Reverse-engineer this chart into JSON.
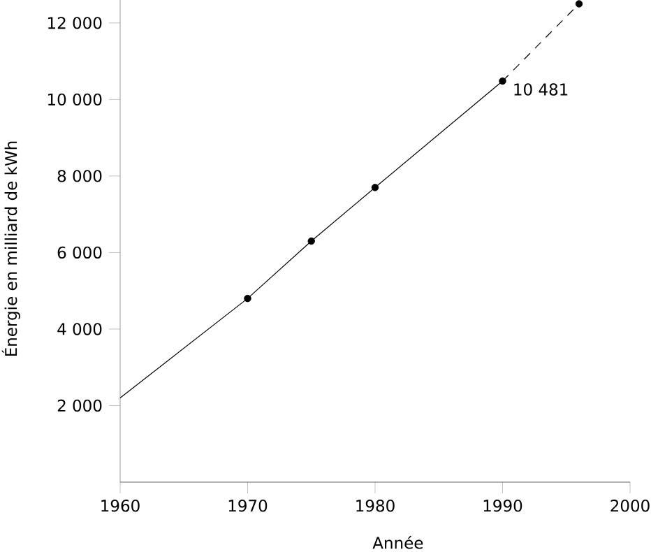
{
  "chart_data": {
    "type": "line",
    "xlabel": "Année",
    "ylabel": "Énergie en milliard de kWh",
    "xlim": [
      1960,
      2000
    ],
    "ylim": [
      0,
      12600
    ],
    "xticks": [
      1960,
      1970,
      1980,
      1990,
      2000
    ],
    "yticks": [
      {
        "value": 2000,
        "label": "2 000"
      },
      {
        "value": 4000,
        "label": "4 000"
      },
      {
        "value": 6000,
        "label": "6 000"
      },
      {
        "value": 8000,
        "label": "8 000"
      },
      {
        "value": 10000,
        "label": "10 000"
      },
      {
        "value": 12000,
        "label": "12 000"
      }
    ],
    "series": [
      {
        "color": "#000000",
        "x": [
          1960,
          1970,
          1975,
          1980,
          1990
        ],
        "values": [
          2200,
          4800,
          6300,
          7700,
          10481
        ],
        "marker": "none",
        "line_style": "solid"
      },
      {
        "color": "#000000",
        "x": [
          1990,
          1996
        ],
        "values": [
          10481,
          12500
        ],
        "marker": "none",
        "line_style": "dashed"
      },
      {
        "type": "scatter",
        "color": "#000000",
        "x": [
          1970,
          1975,
          1980,
          1990,
          1996
        ],
        "values": [
          4800,
          6300,
          7700,
          10481,
          12500
        ],
        "marker": "circle",
        "value_labels": [
          null,
          null,
          null,
          "10 481",
          null
        ]
      }
    ]
  }
}
